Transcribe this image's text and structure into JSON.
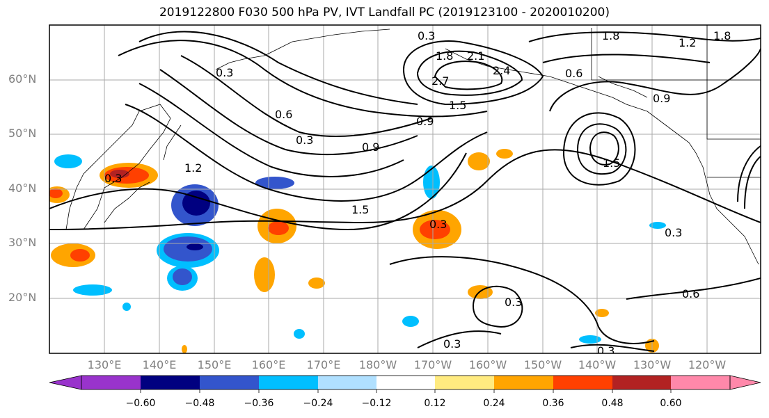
{
  "title": "2019122800 F030 500 hPa PV, IVT Landfall PC (2019123100 - 2020010200)",
  "lat_labels": [
    "60°N",
    "50°N",
    "40°N",
    "30°N",
    "20°N"
  ],
  "lon_labels": [
    "130°E",
    "140°E",
    "150°E",
    "160°E",
    "170°E",
    "180°W",
    "170°W",
    "160°W",
    "150°W",
    "140°W",
    "130°W",
    "120°W"
  ],
  "contour_labels": [
    "0.3",
    "0.3",
    "0.3",
    "0.6",
    "0.6",
    "0.9",
    "0.9",
    "0.9",
    "1.2",
    "1.2",
    "1.5",
    "1.5",
    "1.8",
    "2.1",
    "2.4",
    "2.7",
    "0.3",
    "0.3",
    "0.6",
    "0.3",
    "1.8",
    "1.5",
    "1.8",
    "0.3",
    "0.3",
    "0.3"
  ],
  "colorbar": {
    "ticks": [
      "−0.60",
      "−0.48",
      "−0.36",
      "−0.24",
      "−0.12",
      "0.12",
      "0.24",
      "0.36",
      "0.48",
      "0.60"
    ],
    "colors": [
      "#9933cc",
      "#000080",
      "#3355cc",
      "#00bfff",
      "#b0e0ff",
      "#ffffff",
      "#ffeb80",
      "#ffa500",
      "#ff4000",
      "#b22222",
      "#ff88aa"
    ]
  }
}
